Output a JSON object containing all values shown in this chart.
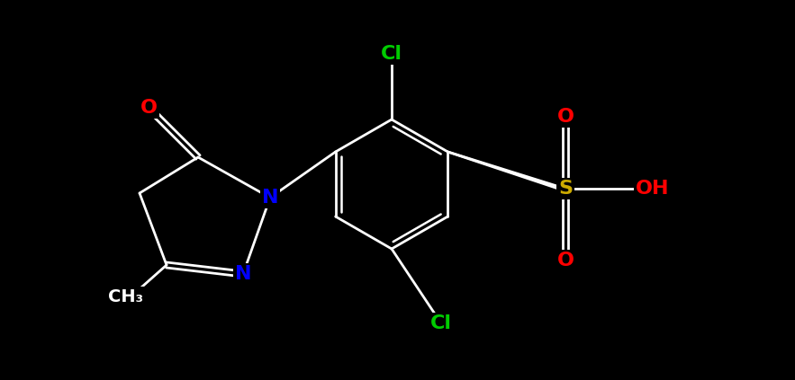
{
  "bg_color": "#000000",
  "atom_colors": {
    "C": "#ffffff",
    "N": "#0000ff",
    "O": "#ff0000",
    "S": "#ccaa00",
    "Cl": "#00cc00",
    "H": "#ffffff"
  },
  "font_size_atom": 14,
  "bond_color": "#ffffff",
  "bond_width": 2.0
}
